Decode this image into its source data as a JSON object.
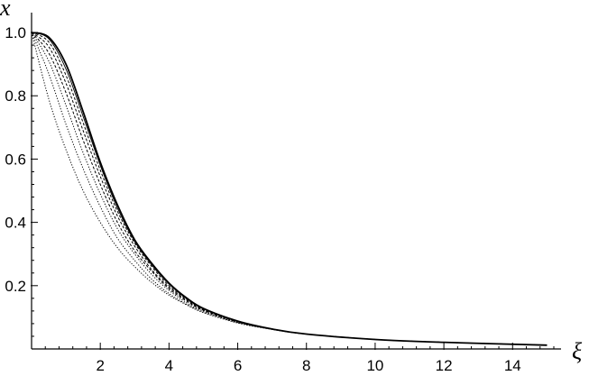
{
  "chart_data": {
    "type": "line",
    "title": "",
    "xlabel": "ξ",
    "ylabel": "x",
    "xlim": [
      0,
      15.2
    ],
    "ylim": [
      0,
      1.04
    ],
    "x_ticks": [
      2,
      4,
      6,
      8,
      10,
      12,
      14
    ],
    "x_tick_labels": [
      "2",
      "4",
      "6",
      "8",
      "10",
      "12",
      "14"
    ],
    "y_ticks": [
      0.2,
      0.4,
      0.6,
      0.8,
      1.0
    ],
    "y_tick_labels": [
      "0.2",
      "0.4",
      "0.6",
      "0.8",
      "1.0"
    ],
    "grid": false,
    "legend": "none",
    "line_color": "#000000",
    "series": [
      {
        "style": "dotted",
        "x": [
          0,
          0.5,
          1,
          1.5,
          2,
          2.5,
          3,
          3.5,
          4,
          4.5,
          5,
          6,
          7,
          8,
          10,
          12,
          15
        ],
        "y": [
          1.0,
          0.79,
          0.63,
          0.5,
          0.4,
          0.32,
          0.26,
          0.21,
          0.17,
          0.14,
          0.115,
          0.082,
          0.062,
          0.047,
          0.03,
          0.021,
          0.012
        ]
      },
      {
        "style": "dotted",
        "x": [
          0,
          0.5,
          1,
          1.5,
          2,
          2.5,
          3,
          3.5,
          4,
          4.5,
          5,
          6,
          7,
          8,
          10,
          12,
          15
        ],
        "y": [
          1.0,
          0.87,
          0.71,
          0.57,
          0.45,
          0.35,
          0.28,
          0.22,
          0.175,
          0.142,
          0.117,
          0.083,
          0.062,
          0.047,
          0.03,
          0.021,
          0.012
        ]
      },
      {
        "style": "dotted",
        "x": [
          0,
          0.5,
          1,
          1.5,
          2,
          2.5,
          3,
          3.5,
          4,
          4.5,
          5,
          6,
          7,
          8,
          10,
          12,
          15
        ],
        "y": [
          1.0,
          0.91,
          0.77,
          0.62,
          0.49,
          0.38,
          0.3,
          0.235,
          0.185,
          0.147,
          0.12,
          0.084,
          0.062,
          0.047,
          0.03,
          0.021,
          0.012
        ]
      },
      {
        "style": "dashed",
        "x": [
          0,
          0.5,
          1,
          1.5,
          2,
          2.5,
          3,
          3.5,
          4,
          4.5,
          5,
          6,
          7,
          8,
          10,
          12,
          15
        ],
        "y": [
          1.0,
          0.935,
          0.81,
          0.66,
          0.52,
          0.4,
          0.31,
          0.245,
          0.19,
          0.152,
          0.122,
          0.085,
          0.063,
          0.047,
          0.03,
          0.021,
          0.012
        ]
      },
      {
        "style": "dashed",
        "x": [
          0,
          0.5,
          1,
          1.5,
          2,
          2.5,
          3,
          3.5,
          4,
          4.5,
          5,
          6,
          7,
          8,
          10,
          12,
          15
        ],
        "y": [
          1.0,
          0.955,
          0.84,
          0.69,
          0.545,
          0.42,
          0.325,
          0.25,
          0.195,
          0.155,
          0.124,
          0.086,
          0.063,
          0.047,
          0.03,
          0.021,
          0.012
        ]
      },
      {
        "style": "dashed",
        "x": [
          0,
          0.5,
          1,
          1.5,
          2,
          2.5,
          3,
          3.5,
          4,
          4.5,
          5,
          6,
          7,
          8,
          10,
          12,
          15
        ],
        "y": [
          1.0,
          0.97,
          0.865,
          0.715,
          0.565,
          0.435,
          0.335,
          0.26,
          0.2,
          0.158,
          0.126,
          0.087,
          0.063,
          0.047,
          0.03,
          0.021,
          0.012
        ]
      },
      {
        "style": "solid-thin",
        "x": [
          0,
          0.5,
          1,
          1.5,
          2,
          2.5,
          3,
          3.5,
          4,
          4.5,
          5,
          6,
          7,
          8,
          10,
          12,
          15
        ],
        "y": [
          1.0,
          0.98,
          0.885,
          0.735,
          0.58,
          0.445,
          0.34,
          0.265,
          0.205,
          0.16,
          0.127,
          0.087,
          0.063,
          0.047,
          0.03,
          0.021,
          0.012
        ]
      },
      {
        "style": "solid",
        "x": [
          0,
          0.5,
          1,
          1.5,
          2,
          2.5,
          3,
          3.5,
          4,
          4.5,
          5,
          6,
          7,
          8,
          10,
          12,
          15
        ],
        "y": [
          1.0,
          0.985,
          0.9,
          0.75,
          0.59,
          0.455,
          0.345,
          0.27,
          0.208,
          0.162,
          0.128,
          0.088,
          0.063,
          0.047,
          0.03,
          0.021,
          0.012
        ]
      }
    ]
  }
}
